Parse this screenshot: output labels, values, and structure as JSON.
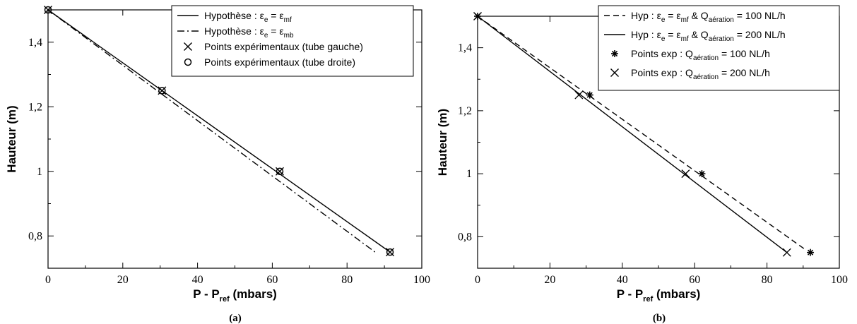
{
  "chart_data": [
    {
      "type": "line",
      "panel_label": "(a)",
      "xlabel": {
        "main": "P - P",
        "sub": "ref",
        "rest": " (mbars)"
      },
      "ylabel": "Hauteur (m)",
      "xlim": [
        0,
        100
      ],
      "ylim": [
        0.7,
        1.5
      ],
      "xticks": [
        0,
        20,
        40,
        60,
        80,
        100
      ],
      "xtick_labels": [
        "0",
        "20",
        "40",
        "60",
        "80",
        "100"
      ],
      "yticks": [
        0.8,
        1.0,
        1.2,
        1.4
      ],
      "ytick_labels": [
        "0,8",
        "1",
        "1,2",
        "1,4"
      ],
      "grid": false,
      "legend_position": "top-right",
      "series": [
        {
          "name": "Hypothèse : ε_e = ε_mf",
          "kind": "line",
          "style": "solid",
          "legend": {
            "text": "Hypothèse : ε",
            "sub1": "e",
            "mid": " = ε",
            "sub2": "mf"
          },
          "x": [
            0,
            91.5
          ],
          "y": [
            1.5,
            0.75
          ]
        },
        {
          "name": "Hypothèse : ε_e = ε_mb",
          "kind": "line",
          "style": "dashdot",
          "legend": {
            "text": "Hypothèse : ε",
            "sub1": "e",
            "mid": " = ε",
            "sub2": "mb"
          },
          "x": [
            0,
            87.5
          ],
          "y": [
            1.5,
            0.75
          ]
        },
        {
          "name": "Points expérimentaux (tube gauche)",
          "kind": "marker",
          "marker": "x",
          "legend": {
            "text": "Points expérimentaux (tube gauche)"
          },
          "x": [
            0,
            30.5,
            62,
            91.5
          ],
          "y": [
            1.5,
            1.25,
            1.0,
            0.75
          ]
        },
        {
          "name": "Points expérimentaux (tube droite)",
          "kind": "marker",
          "marker": "o",
          "legend": {
            "text": "Points expérimentaux (tube droite)"
          },
          "x": [
            0,
            30.5,
            62,
            91.5
          ],
          "y": [
            1.5,
            1.25,
            1.0,
            0.75
          ]
        }
      ]
    },
    {
      "type": "line",
      "panel_label": "(b)",
      "xlabel": {
        "main": "P - P",
        "sub": "ref",
        "rest": " (mbars)"
      },
      "ylabel": "Hauteur (m)",
      "xlim": [
        0,
        100
      ],
      "ylim": [
        0.7,
        1.5
      ],
      "xticks": [
        0,
        20,
        40,
        60,
        80,
        100
      ],
      "xtick_labels": [
        "0",
        "20",
        "40",
        "60",
        "80",
        "100"
      ],
      "yticks": [
        0.8,
        1.0,
        1.2,
        1.4
      ],
      "ytick_labels": [
        "0,8",
        "1",
        "1,2",
        "1,4"
      ],
      "grid": false,
      "legend_position": "top-right",
      "series": [
        {
          "name": "Hyp : ε_e = ε_mf & Q_aération = 100 NL/h",
          "kind": "line",
          "style": "dashed",
          "legend": {
            "text": "Hyp : ε",
            "sub1": "e",
            "mid": " = ε",
            "sub2": "mf",
            "mid2": " & Q",
            "sub3": "aération",
            "end": " = 100 NL/h"
          },
          "x": [
            0,
            90.5
          ],
          "y": [
            1.5,
            0.76
          ]
        },
        {
          "name": "Hyp : ε_e = ε_mf & Q_aération = 200 NL/h",
          "kind": "line",
          "style": "solid",
          "legend": {
            "text": "Hyp : ε",
            "sub1": "e",
            "mid": " = ε",
            "sub2": "mf",
            "mid2": " & Q",
            "sub3": "aération",
            "end": " = 200 NL/h"
          },
          "x": [
            0,
            85.5
          ],
          "y": [
            1.5,
            0.75
          ]
        },
        {
          "name": "Points exp : Q_aération = 100 NL/h",
          "kind": "marker",
          "marker": "star",
          "legend": {
            "text": "Points exp : Q",
            "sub1": "aération",
            "end": " = 100 NL/h"
          },
          "x": [
            0,
            31,
            62,
            92
          ],
          "y": [
            1.5,
            1.25,
            1.0,
            0.75
          ]
        },
        {
          "name": "Points exp : Q_aération = 200 NL/h",
          "kind": "marker",
          "marker": "x",
          "legend": {
            "text": "Points exp : Q",
            "sub1": "aération",
            "end": " = 200 NL/h"
          },
          "x": [
            0,
            28,
            57.5,
            85.5
          ],
          "y": [
            1.5,
            1.25,
            1.0,
            0.75
          ]
        }
      ]
    }
  ]
}
